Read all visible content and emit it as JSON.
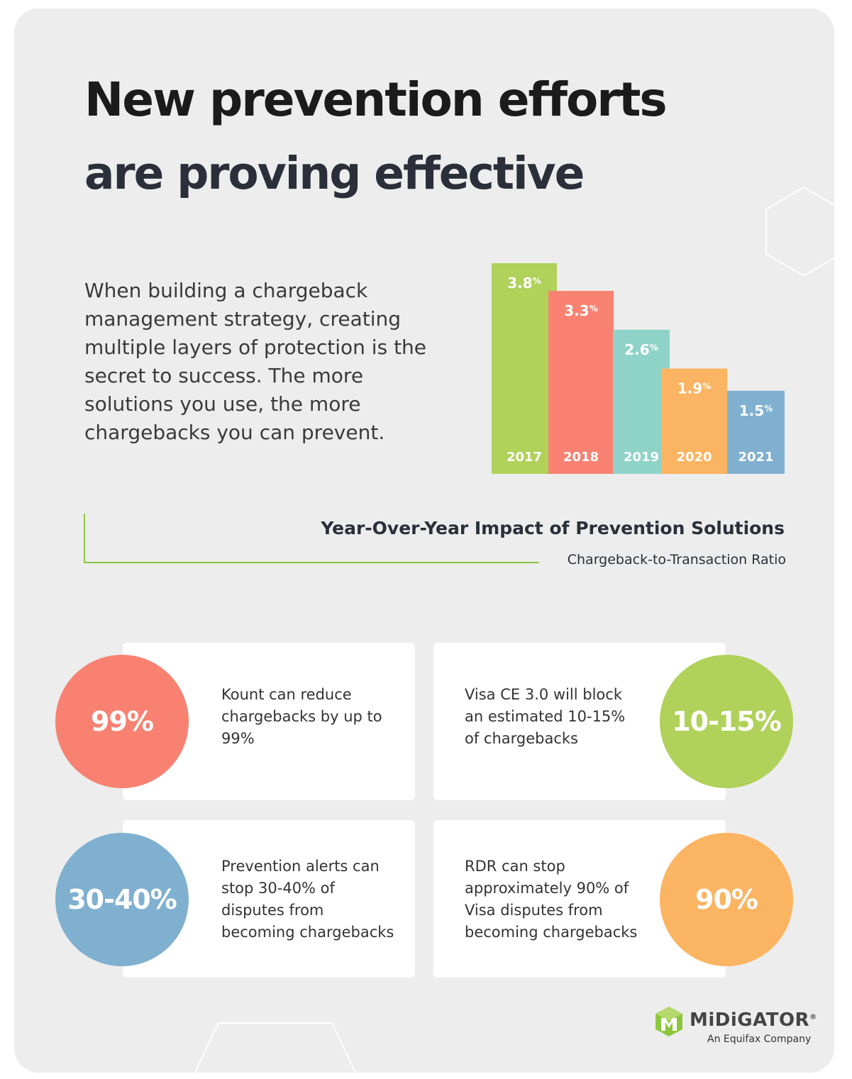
{
  "header": {
    "title_line1": "New prevention efforts",
    "title_line2": "are proving effective"
  },
  "intro": "When building a chargeback management strategy, creating multiple layers of protection is the secret to success. The more solutions you use, the more chargebacks you can prevent.",
  "chart_data": {
    "type": "bar",
    "title": "Year-Over-Year Impact of Prevention Solutions",
    "subtitle": "Chargeback-to-Transaction Ratio",
    "categories": [
      "2017",
      "2018",
      "2019",
      "2020",
      "2021"
    ],
    "values": [
      3.8,
      3.3,
      2.6,
      1.9,
      1.5
    ],
    "value_labels": [
      "3.8",
      "3.3",
      "2.6",
      "1.9",
      "1.5"
    ],
    "unit": "%",
    "colors": [
      "#b0d15a",
      "#f98171",
      "#8fd3c8",
      "#fbb461",
      "#80b0d0"
    ],
    "ylim": [
      0,
      3.8
    ],
    "grid": false,
    "legend": "none"
  },
  "stats": [
    {
      "value": "99%",
      "text": "Kount can reduce chargebacks by up to 99%",
      "color": "#f98171"
    },
    {
      "value": "10-15%",
      "text": "Visa CE 3.0 will block an estimated 10-15% of chargebacks",
      "color": "#b0d15a"
    },
    {
      "value": "30-40%",
      "text": "Prevention alerts can stop 30-40% of disputes from becoming chargebacks",
      "color": "#80b0d0"
    },
    {
      "value": "90%",
      "text": "RDR can stop approximately 90% of Visa disputes from becoming chargebacks",
      "color": "#fbb461"
    }
  ],
  "logo": {
    "name": "MiDiGATOR",
    "registered": "®",
    "tagline": "An Equifax Company"
  }
}
